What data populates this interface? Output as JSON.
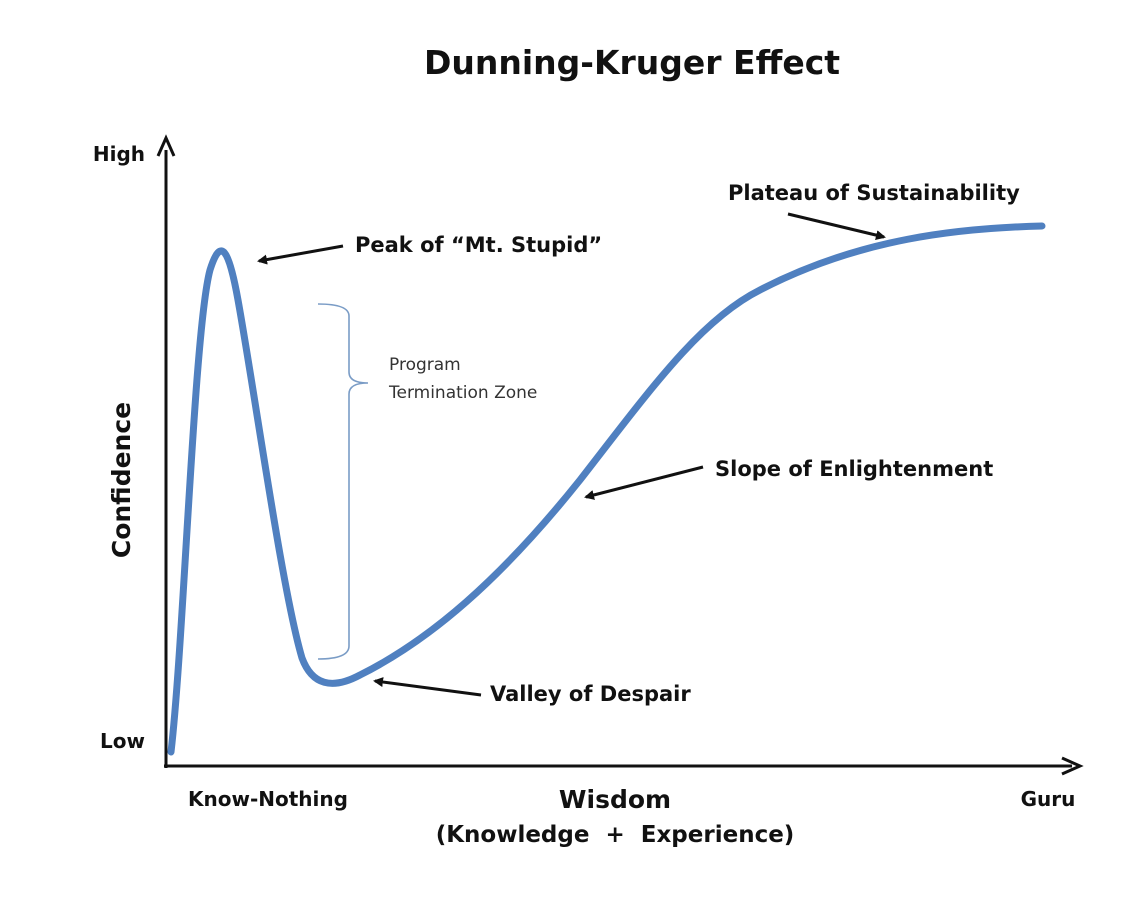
{
  "title": "Dunning-Kruger Effect",
  "axes": {
    "y_title": "Confidence",
    "y_high": "High",
    "y_low": "Low",
    "x_title": "Wisdom",
    "x_subtitle": "(Knowledge  +  Experience)",
    "x_start": "Know-Nothing",
    "x_end": "Guru"
  },
  "stages": {
    "peak": "Peak of “Mt. Stupid”",
    "valley": "Valley of Despair",
    "slope": "Slope of Enlightenment",
    "plateau": "Plateau of Sustainability"
  },
  "zone": {
    "line1": "Program",
    "line2": "Termination Zone"
  },
  "colors": {
    "curve": "#5080c0",
    "bracket": "#7a9cc6",
    "ink": "#111111"
  }
}
